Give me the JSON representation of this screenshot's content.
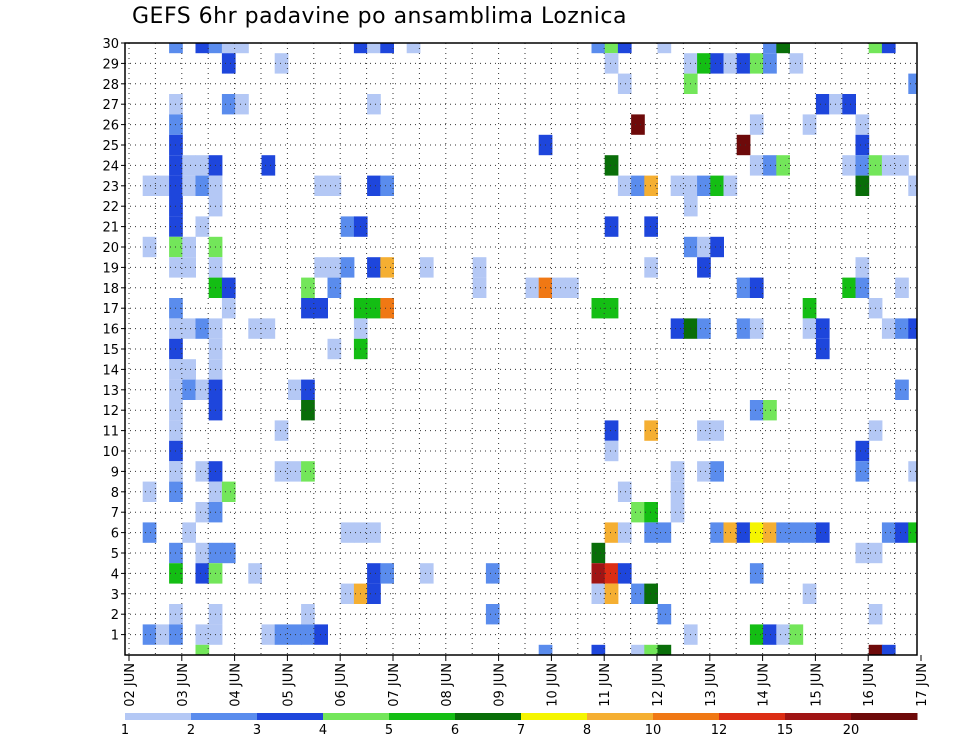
{
  "chart_data": {
    "type": "heatmap",
    "title": "GEFS 6hr padavine po ansamblima Loznica",
    "xlabel": "",
    "ylabel": "",
    "x_ticks": [
      "02 JUN",
      "03 JUN",
      "04 JUN",
      "05 JUN",
      "06 JUN",
      "07 JUN",
      "08 JUN",
      "09 JUN",
      "10 JUN",
      "11 JUN",
      "12 JUN",
      "13 JUN",
      "14 JUN",
      "15 JUN",
      "16 JUN",
      "17 JUN"
    ],
    "y_ticks": [
      "1",
      "2",
      "3",
      "4",
      "5",
      "6",
      "7",
      "8",
      "9",
      "10",
      "11",
      "12",
      "13",
      "14",
      "15",
      "16",
      "17",
      "18",
      "19",
      "20",
      "21",
      "22",
      "23",
      "24",
      "25",
      "26",
      "27",
      "28",
      "29",
      "30"
    ],
    "y_range": [
      0,
      30
    ],
    "time_steps_per_day": 4,
    "n_time_steps": 60,
    "grid": true,
    "colorbar": {
      "levels": [
        "1",
        "2",
        "3",
        "4",
        "5",
        "6",
        "7",
        "8",
        "10",
        "12",
        "15",
        "20"
      ],
      "colors": [
        "#b4c8f5",
        "#5a8ced",
        "#1e46dc",
        "#73e65a",
        "#14be14",
        "#096e09",
        "#f5f500",
        "#f5af32",
        "#f07814",
        "#dc2d14",
        "#a01414",
        "#6e0a0a"
      ]
    },
    "cells": [
      {
        "t": 3,
        "m": 30,
        "c": 1
      },
      {
        "t": 5,
        "m": 30,
        "c": 2
      },
      {
        "t": 6,
        "m": 30,
        "c": 1
      },
      {
        "t": 7,
        "m": 30,
        "c": 0
      },
      {
        "t": 8,
        "m": 30,
        "c": 0
      },
      {
        "t": 17,
        "m": 30,
        "c": 2
      },
      {
        "t": 18,
        "m": 30,
        "c": 0
      },
      {
        "t": 19,
        "m": 30,
        "c": 2
      },
      {
        "t": 21,
        "m": 30,
        "c": 0
      },
      {
        "t": 35,
        "m": 30,
        "c": 1
      },
      {
        "t": 36,
        "m": 30,
        "c": 3
      },
      {
        "t": 37,
        "m": 30,
        "c": 2
      },
      {
        "t": 40,
        "m": 30,
        "c": 0
      },
      {
        "t": 48,
        "m": 30,
        "c": 1
      },
      {
        "t": 49,
        "m": 30,
        "c": 5
      },
      {
        "t": 56,
        "m": 30,
        "c": 3
      },
      {
        "t": 57,
        "m": 30,
        "c": 2
      },
      {
        "t": 7,
        "m": 29,
        "c": 2
      },
      {
        "t": 11,
        "m": 29,
        "c": 0
      },
      {
        "t": 36,
        "m": 29,
        "c": 0
      },
      {
        "t": 42,
        "m": 29,
        "c": 0
      },
      {
        "t": 43,
        "m": 29,
        "c": 4
      },
      {
        "t": 44,
        "m": 29,
        "c": 2
      },
      {
        "t": 45,
        "m": 29,
        "c": 0
      },
      {
        "t": 46,
        "m": 29,
        "c": 2
      },
      {
        "t": 47,
        "m": 29,
        "c": 3
      },
      {
        "t": 48,
        "m": 29,
        "c": 1
      },
      {
        "t": 50,
        "m": 29,
        "c": 0
      },
      {
        "t": 37,
        "m": 28,
        "c": 0
      },
      {
        "t": 42,
        "m": 28,
        "c": 3
      },
      {
        "t": 59,
        "m": 28,
        "c": 1
      },
      {
        "t": 3,
        "m": 27,
        "c": 0
      },
      {
        "t": 7,
        "m": 27,
        "c": 1
      },
      {
        "t": 8,
        "m": 27,
        "c": 0
      },
      {
        "t": 18,
        "m": 27,
        "c": 0
      },
      {
        "t": 52,
        "m": 27,
        "c": 2
      },
      {
        "t": 53,
        "m": 27,
        "c": 0
      },
      {
        "t": 54,
        "m": 27,
        "c": 2
      },
      {
        "t": 3,
        "m": 26,
        "c": 1
      },
      {
        "t": 38,
        "m": 26,
        "c": 11
      },
      {
        "t": 47,
        "m": 26,
        "c": 0
      },
      {
        "t": 51,
        "m": 26,
        "c": 0
      },
      {
        "t": 55,
        "m": 26,
        "c": 0
      },
      {
        "t": 3,
        "m": 25,
        "c": 2
      },
      {
        "t": 31,
        "m": 25,
        "c": 2
      },
      {
        "t": 46,
        "m": 25,
        "c": 11
      },
      {
        "t": 55,
        "m": 25,
        "c": 2
      },
      {
        "t": 3,
        "m": 24,
        "c": 2
      },
      {
        "t": 4,
        "m": 24,
        "c": 0
      },
      {
        "t": 5,
        "m": 24,
        "c": 0
      },
      {
        "t": 6,
        "m": 24,
        "c": 2
      },
      {
        "t": 10,
        "m": 24,
        "c": 2
      },
      {
        "t": 36,
        "m": 24,
        "c": 5
      },
      {
        "t": 47,
        "m": 24,
        "c": 0
      },
      {
        "t": 48,
        "m": 24,
        "c": 1
      },
      {
        "t": 49,
        "m": 24,
        "c": 3
      },
      {
        "t": 54,
        "m": 24,
        "c": 0
      },
      {
        "t": 55,
        "m": 24,
        "c": 1
      },
      {
        "t": 56,
        "m": 24,
        "c": 3
      },
      {
        "t": 57,
        "m": 24,
        "c": 0
      },
      {
        "t": 58,
        "m": 24,
        "c": 0
      },
      {
        "t": 1,
        "m": 23,
        "c": 0
      },
      {
        "t": 2,
        "m": 23,
        "c": 0
      },
      {
        "t": 3,
        "m": 23,
        "c": 2
      },
      {
        "t": 4,
        "m": 23,
        "c": 0
      },
      {
        "t": 5,
        "m": 23,
        "c": 1
      },
      {
        "t": 6,
        "m": 23,
        "c": 0
      },
      {
        "t": 14,
        "m": 23,
        "c": 0
      },
      {
        "t": 15,
        "m": 23,
        "c": 0
      },
      {
        "t": 18,
        "m": 23,
        "c": 2
      },
      {
        "t": 19,
        "m": 23,
        "c": 1
      },
      {
        "t": 37,
        "m": 23,
        "c": 0
      },
      {
        "t": 38,
        "m": 23,
        "c": 1
      },
      {
        "t": 39,
        "m": 23,
        "c": 7
      },
      {
        "t": 41,
        "m": 23,
        "c": 0
      },
      {
        "t": 42,
        "m": 23,
        "c": 0
      },
      {
        "t": 43,
        "m": 23,
        "c": 1
      },
      {
        "t": 44,
        "m": 23,
        "c": 4
      },
      {
        "t": 45,
        "m": 23,
        "c": 0
      },
      {
        "t": 55,
        "m": 23,
        "c": 5
      },
      {
        "t": 59,
        "m": 23,
        "c": 0
      },
      {
        "t": 3,
        "m": 22,
        "c": 2
      },
      {
        "t": 6,
        "m": 22,
        "c": 0
      },
      {
        "t": 42,
        "m": 22,
        "c": 0
      },
      {
        "t": 3,
        "m": 21,
        "c": 2
      },
      {
        "t": 5,
        "m": 21,
        "c": 0
      },
      {
        "t": 16,
        "m": 21,
        "c": 1
      },
      {
        "t": 17,
        "m": 21,
        "c": 2
      },
      {
        "t": 36,
        "m": 21,
        "c": 2
      },
      {
        "t": 39,
        "m": 21,
        "c": 2
      },
      {
        "t": 1,
        "m": 20,
        "c": 0
      },
      {
        "t": 3,
        "m": 20,
        "c": 3
      },
      {
        "t": 4,
        "m": 20,
        "c": 0
      },
      {
        "t": 6,
        "m": 20,
        "c": 3
      },
      {
        "t": 42,
        "m": 20,
        "c": 1
      },
      {
        "t": 43,
        "m": 20,
        "c": 0
      },
      {
        "t": 44,
        "m": 20,
        "c": 2
      },
      {
        "t": 3,
        "m": 19,
        "c": 0
      },
      {
        "t": 4,
        "m": 19,
        "c": 0
      },
      {
        "t": 6,
        "m": 19,
        "c": 0
      },
      {
        "t": 14,
        "m": 19,
        "c": 0
      },
      {
        "t": 15,
        "m": 19,
        "c": 0
      },
      {
        "t": 16,
        "m": 19,
        "c": 1
      },
      {
        "t": 18,
        "m": 19,
        "c": 2
      },
      {
        "t": 19,
        "m": 19,
        "c": 7
      },
      {
        "t": 22,
        "m": 19,
        "c": 0
      },
      {
        "t": 26,
        "m": 19,
        "c": 0
      },
      {
        "t": 39,
        "m": 19,
        "c": 0
      },
      {
        "t": 43,
        "m": 19,
        "c": 2
      },
      {
        "t": 55,
        "m": 19,
        "c": 0
      },
      {
        "t": 6,
        "m": 18,
        "c": 4
      },
      {
        "t": 7,
        "m": 18,
        "c": 2
      },
      {
        "t": 13,
        "m": 18,
        "c": 3
      },
      {
        "t": 15,
        "m": 18,
        "c": 1
      },
      {
        "t": 26,
        "m": 18,
        "c": 0
      },
      {
        "t": 30,
        "m": 18,
        "c": 0
      },
      {
        "t": 31,
        "m": 18,
        "c": 8
      },
      {
        "t": 32,
        "m": 18,
        "c": 0
      },
      {
        "t": 33,
        "m": 18,
        "c": 0
      },
      {
        "t": 46,
        "m": 18,
        "c": 1
      },
      {
        "t": 47,
        "m": 18,
        "c": 2
      },
      {
        "t": 54,
        "m": 18,
        "c": 4
      },
      {
        "t": 55,
        "m": 18,
        "c": 1
      },
      {
        "t": 58,
        "m": 18,
        "c": 0
      },
      {
        "t": 3,
        "m": 17,
        "c": 1
      },
      {
        "t": 7,
        "m": 17,
        "c": 0
      },
      {
        "t": 13,
        "m": 17,
        "c": 2
      },
      {
        "t": 14,
        "m": 17,
        "c": 2
      },
      {
        "t": 17,
        "m": 17,
        "c": 4
      },
      {
        "t": 18,
        "m": 17,
        "c": 4
      },
      {
        "t": 19,
        "m": 17,
        "c": 8
      },
      {
        "t": 35,
        "m": 17,
        "c": 4
      },
      {
        "t": 36,
        "m": 17,
        "c": 4
      },
      {
        "t": 51,
        "m": 17,
        "c": 4
      },
      {
        "t": 56,
        "m": 17,
        "c": 0
      },
      {
        "t": 3,
        "m": 16,
        "c": 0
      },
      {
        "t": 4,
        "m": 16,
        "c": 0
      },
      {
        "t": 5,
        "m": 16,
        "c": 1
      },
      {
        "t": 6,
        "m": 16,
        "c": 0
      },
      {
        "t": 9,
        "m": 16,
        "c": 0
      },
      {
        "t": 10,
        "m": 16,
        "c": 0
      },
      {
        "t": 17,
        "m": 16,
        "c": 0
      },
      {
        "t": 41,
        "m": 16,
        "c": 2
      },
      {
        "t": 42,
        "m": 16,
        "c": 5
      },
      {
        "t": 43,
        "m": 16,
        "c": 1
      },
      {
        "t": 46,
        "m": 16,
        "c": 1
      },
      {
        "t": 47,
        "m": 16,
        "c": 0
      },
      {
        "t": 51,
        "m": 16,
        "c": 0
      },
      {
        "t": 52,
        "m": 16,
        "c": 2
      },
      {
        "t": 57,
        "m": 16,
        "c": 0
      },
      {
        "t": 58,
        "m": 16,
        "c": 1
      },
      {
        "t": 59,
        "m": 16,
        "c": 2
      },
      {
        "t": 3,
        "m": 15,
        "c": 2
      },
      {
        "t": 6,
        "m": 15,
        "c": 0
      },
      {
        "t": 15,
        "m": 15,
        "c": 0
      },
      {
        "t": 17,
        "m": 15,
        "c": 4
      },
      {
        "t": 52,
        "m": 15,
        "c": 2
      },
      {
        "t": 3,
        "m": 14,
        "c": 0
      },
      {
        "t": 4,
        "m": 14,
        "c": 0
      },
      {
        "t": 6,
        "m": 14,
        "c": 0
      },
      {
        "t": 3,
        "m": 13,
        "c": 0
      },
      {
        "t": 4,
        "m": 13,
        "c": 1
      },
      {
        "t": 5,
        "m": 13,
        "c": 0
      },
      {
        "t": 6,
        "m": 13,
        "c": 2
      },
      {
        "t": 12,
        "m": 13,
        "c": 0
      },
      {
        "t": 13,
        "m": 13,
        "c": 2
      },
      {
        "t": 58,
        "m": 13,
        "c": 1
      },
      {
        "t": 3,
        "m": 12,
        "c": 0
      },
      {
        "t": 6,
        "m": 12,
        "c": 2
      },
      {
        "t": 13,
        "m": 12,
        "c": 5
      },
      {
        "t": 47,
        "m": 12,
        "c": 1
      },
      {
        "t": 48,
        "m": 12,
        "c": 3
      },
      {
        "t": 3,
        "m": 11,
        "c": 0
      },
      {
        "t": 11,
        "m": 11,
        "c": 0
      },
      {
        "t": 36,
        "m": 11,
        "c": 2
      },
      {
        "t": 39,
        "m": 11,
        "c": 7
      },
      {
        "t": 43,
        "m": 11,
        "c": 0
      },
      {
        "t": 44,
        "m": 11,
        "c": 0
      },
      {
        "t": 56,
        "m": 11,
        "c": 0
      },
      {
        "t": 3,
        "m": 10,
        "c": 2
      },
      {
        "t": 36,
        "m": 10,
        "c": 0
      },
      {
        "t": 55,
        "m": 10,
        "c": 2
      },
      {
        "t": 3,
        "m": 9,
        "c": 0
      },
      {
        "t": 5,
        "m": 9,
        "c": 0
      },
      {
        "t": 6,
        "m": 9,
        "c": 2
      },
      {
        "t": 11,
        "m": 9,
        "c": 0
      },
      {
        "t": 12,
        "m": 9,
        "c": 0
      },
      {
        "t": 13,
        "m": 9,
        "c": 3
      },
      {
        "t": 41,
        "m": 9,
        "c": 0
      },
      {
        "t": 43,
        "m": 9,
        "c": 0
      },
      {
        "t": 44,
        "m": 9,
        "c": 1
      },
      {
        "t": 55,
        "m": 9,
        "c": 1
      },
      {
        "t": 59,
        "m": 9,
        "c": 0
      },
      {
        "t": 1,
        "m": 8,
        "c": 0
      },
      {
        "t": 3,
        "m": 8,
        "c": 1
      },
      {
        "t": 6,
        "m": 8,
        "c": 0
      },
      {
        "t": 7,
        "m": 8,
        "c": 3
      },
      {
        "t": 37,
        "m": 8,
        "c": 0
      },
      {
        "t": 41,
        "m": 8,
        "c": 0
      },
      {
        "t": 5,
        "m": 7,
        "c": 0
      },
      {
        "t": 6,
        "m": 7,
        "c": 1
      },
      {
        "t": 38,
        "m": 7,
        "c": 3
      },
      {
        "t": 39,
        "m": 7,
        "c": 4
      },
      {
        "t": 41,
        "m": 7,
        "c": 0
      },
      {
        "t": 1,
        "m": 6,
        "c": 1
      },
      {
        "t": 4,
        "m": 6,
        "c": 0
      },
      {
        "t": 16,
        "m": 6,
        "c": 0
      },
      {
        "t": 17,
        "m": 6,
        "c": 0
      },
      {
        "t": 18,
        "m": 6,
        "c": 0
      },
      {
        "t": 36,
        "m": 6,
        "c": 7
      },
      {
        "t": 37,
        "m": 6,
        "c": 0
      },
      {
        "t": 39,
        "m": 6,
        "c": 1
      },
      {
        "t": 40,
        "m": 6,
        "c": 1
      },
      {
        "t": 44,
        "m": 6,
        "c": 1
      },
      {
        "t": 45,
        "m": 6,
        "c": 7
      },
      {
        "t": 46,
        "m": 6,
        "c": 2
      },
      {
        "t": 47,
        "m": 6,
        "c": 6
      },
      {
        "t": 48,
        "m": 6,
        "c": 7
      },
      {
        "t": 49,
        "m": 6,
        "c": 1
      },
      {
        "t": 50,
        "m": 6,
        "c": 1
      },
      {
        "t": 51,
        "m": 6,
        "c": 1
      },
      {
        "t": 52,
        "m": 6,
        "c": 2
      },
      {
        "t": 57,
        "m": 6,
        "c": 1
      },
      {
        "t": 58,
        "m": 6,
        "c": 2
      },
      {
        "t": 59,
        "m": 6,
        "c": 4
      },
      {
        "t": 3,
        "m": 5,
        "c": 1
      },
      {
        "t": 5,
        "m": 5,
        "c": 0
      },
      {
        "t": 6,
        "m": 5,
        "c": 1
      },
      {
        "t": 7,
        "m": 5,
        "c": 1
      },
      {
        "t": 35,
        "m": 5,
        "c": 5
      },
      {
        "t": 55,
        "m": 5,
        "c": 0
      },
      {
        "t": 56,
        "m": 5,
        "c": 0
      },
      {
        "t": 3,
        "m": 4,
        "c": 4
      },
      {
        "t": 5,
        "m": 4,
        "c": 2
      },
      {
        "t": 6,
        "m": 4,
        "c": 3
      },
      {
        "t": 9,
        "m": 4,
        "c": 0
      },
      {
        "t": 18,
        "m": 4,
        "c": 2
      },
      {
        "t": 19,
        "m": 4,
        "c": 1
      },
      {
        "t": 22,
        "m": 4,
        "c": 0
      },
      {
        "t": 27,
        "m": 4,
        "c": 1
      },
      {
        "t": 35,
        "m": 4,
        "c": 10
      },
      {
        "t": 36,
        "m": 4,
        "c": 9
      },
      {
        "t": 37,
        "m": 4,
        "c": 2
      },
      {
        "t": 47,
        "m": 4,
        "c": 1
      },
      {
        "t": 16,
        "m": 3,
        "c": 0
      },
      {
        "t": 17,
        "m": 3,
        "c": 7
      },
      {
        "t": 18,
        "m": 3,
        "c": 2
      },
      {
        "t": 35,
        "m": 3,
        "c": 0
      },
      {
        "t": 36,
        "m": 3,
        "c": 7
      },
      {
        "t": 38,
        "m": 3,
        "c": 1
      },
      {
        "t": 39,
        "m": 3,
        "c": 5
      },
      {
        "t": 51,
        "m": 3,
        "c": 0
      },
      {
        "t": 3,
        "m": 2,
        "c": 0
      },
      {
        "t": 6,
        "m": 2,
        "c": 0
      },
      {
        "t": 13,
        "m": 2,
        "c": 0
      },
      {
        "t": 27,
        "m": 2,
        "c": 1
      },
      {
        "t": 40,
        "m": 2,
        "c": 1
      },
      {
        "t": 56,
        "m": 2,
        "c": 0
      },
      {
        "t": 1,
        "m": 1,
        "c": 1
      },
      {
        "t": 2,
        "m": 1,
        "c": 0
      },
      {
        "t": 3,
        "m": 1,
        "c": 1
      },
      {
        "t": 5,
        "m": 1,
        "c": 0
      },
      {
        "t": 6,
        "m": 1,
        "c": 0
      },
      {
        "t": 10,
        "m": 1,
        "c": 0
      },
      {
        "t": 11,
        "m": 1,
        "c": 1
      },
      {
        "t": 12,
        "m": 1,
        "c": 1
      },
      {
        "t": 13,
        "m": 1,
        "c": 1
      },
      {
        "t": 14,
        "m": 1,
        "c": 2
      },
      {
        "t": 42,
        "m": 1,
        "c": 0
      },
      {
        "t": 47,
        "m": 1,
        "c": 4
      },
      {
        "t": 48,
        "m": 1,
        "c": 2
      },
      {
        "t": 49,
        "m": 1,
        "c": 0
      },
      {
        "t": 50,
        "m": 1,
        "c": 3
      },
      {
        "t": 5,
        "m": 0,
        "c": 3
      },
      {
        "t": 31,
        "m": 0,
        "c": 1
      },
      {
        "t": 35,
        "m": 0,
        "c": 2
      },
      {
        "t": 38,
        "m": 0,
        "c": 0
      },
      {
        "t": 39,
        "m": 0,
        "c": 3
      },
      {
        "t": 40,
        "m": 0,
        "c": 5
      },
      {
        "t": 56,
        "m": 0,
        "c": 11
      },
      {
        "t": 57,
        "m": 0,
        "c": 2
      }
    ]
  }
}
